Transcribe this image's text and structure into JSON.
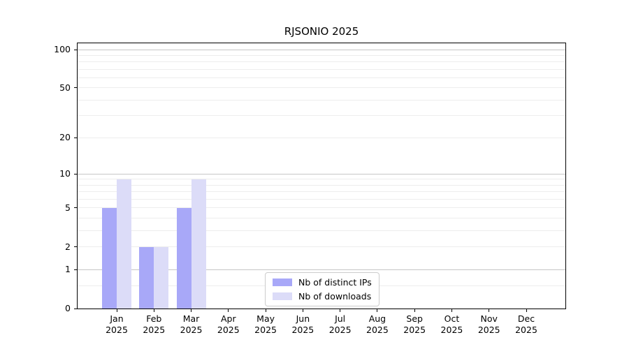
{
  "chart_data": {
    "type": "bar",
    "title": "RJSONIO 2025",
    "categories": [
      "Jan",
      "Feb",
      "Mar",
      "Apr",
      "May",
      "Jun",
      "Jul",
      "Aug",
      "Sep",
      "Oct",
      "Nov",
      "Dec"
    ],
    "category_year": "2025",
    "series": [
      {
        "name": "Nb of distinct IPs",
        "color": "#a8a8f8",
        "values": [
          5,
          2,
          5,
          0,
          0,
          0,
          0,
          0,
          0,
          0,
          0,
          0
        ]
      },
      {
        "name": "Nb of downloads",
        "color": "#dcdcf8",
        "values": [
          9,
          2,
          9,
          0,
          0,
          0,
          0,
          0,
          0,
          0,
          0,
          0
        ]
      }
    ],
    "yscale": "log1p",
    "ylim": [
      0,
      112
    ],
    "yticks_labeled": [
      0,
      1,
      2,
      5,
      10,
      20,
      50,
      100
    ],
    "grid": {
      "orientation": "horizontal",
      "major_values": [
        1,
        10,
        100
      ],
      "minor_values": [
        0.5,
        2,
        3,
        4,
        5,
        6,
        7,
        8,
        9,
        20,
        30,
        40,
        50,
        60,
        70,
        80,
        90
      ]
    },
    "legend_position": "bottom-center-inside",
    "colors": {
      "major_grid": "#c6c6c6",
      "minor_grid": "#ededed",
      "axis": "#000000",
      "background": "#ffffff",
      "text": "#000000"
    }
  }
}
